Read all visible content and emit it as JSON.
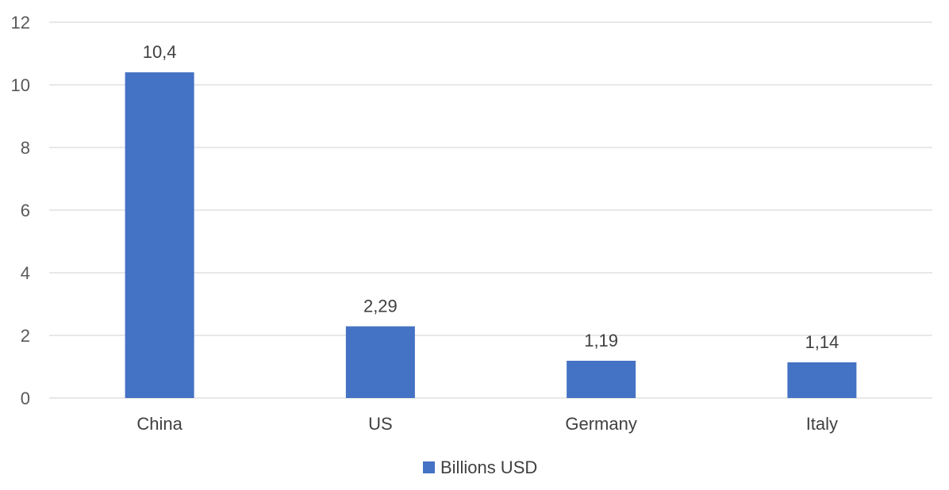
{
  "chart_data": {
    "type": "bar",
    "categories": [
      "China",
      "US",
      "Germany",
      "Italy"
    ],
    "series": [
      {
        "name": "Billions USD",
        "values": [
          10.4,
          2.29,
          1.19,
          1.14
        ],
        "value_labels": [
          "10,4",
          "2,29",
          "1,19",
          "1,14"
        ],
        "color": "#4472c4"
      }
    ],
    "ylim": [
      0,
      12
    ],
    "yticks": [
      "0",
      "2",
      "4",
      "6",
      "8",
      "10",
      "12"
    ],
    "grid": true,
    "legend": "bottom-center"
  }
}
